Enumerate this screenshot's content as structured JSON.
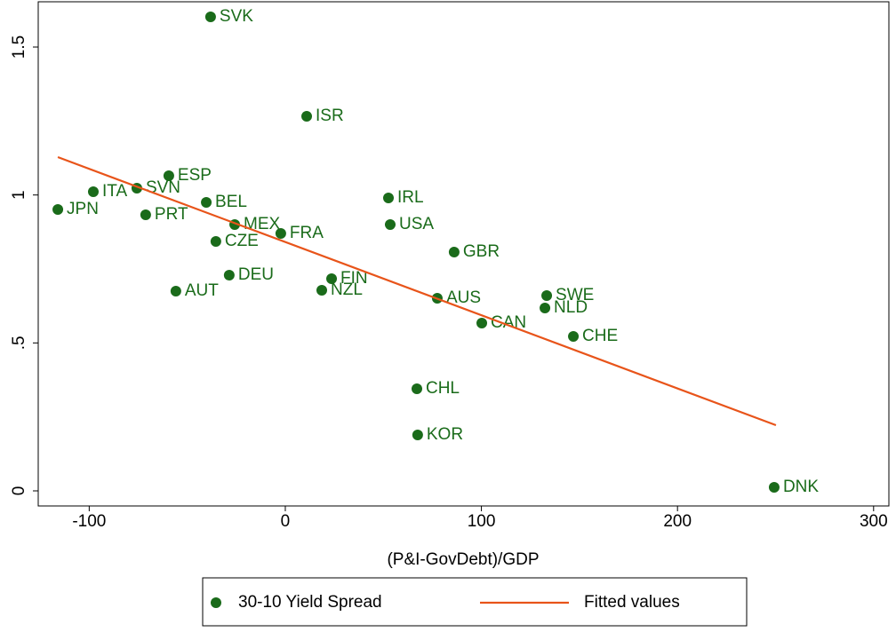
{
  "chart_data": {
    "type": "scatter",
    "xlabel": "(P&I-GovDebt)/GDP",
    "xlim": [
      -126,
      307.8
    ],
    "ylim": [
      -0.051,
      1.653
    ],
    "xticks": [
      -100,
      0,
      100,
      200,
      300
    ],
    "yticks": [
      0,
      {
        "value": 0.5,
        "label": ".5"
      },
      1,
      1.5
    ],
    "legend": "bottom",
    "series": [
      {
        "name": "30-10 Yield Spread",
        "type": "scatter",
        "color": "#1a6b1a",
        "labels": [
          "SVK",
          "ISR",
          "ESP",
          "ITA",
          "SVN",
          "JPN",
          "BEL",
          "PRT",
          "MEX",
          "CZE",
          "FRA",
          "DEU",
          "AUT",
          "FIN",
          "NZL",
          "IRL",
          "USA",
          "GBR",
          "AUS",
          "SWE",
          "NLD",
          "CAN",
          "CHE",
          "CHL",
          "KOR",
          "DNK"
        ],
        "x": [
          -38.1,
          10.9,
          -59.4,
          -97.9,
          -75.7,
          -116,
          -40.3,
          -71.2,
          -25.8,
          -35.4,
          -2.3,
          -28.6,
          -55.8,
          23.6,
          18.6,
          52.6,
          53.5,
          86.1,
          77.5,
          133.3,
          132.4,
          100.2,
          146.9,
          67.1,
          67.5,
          249.3
        ],
        "values": [
          1.602,
          1.266,
          1.065,
          1.011,
          1.023,
          0.951,
          0.975,
          0.933,
          0.9,
          0.843,
          0.87,
          0.729,
          0.675,
          0.717,
          0.678,
          0.99,
          0.9,
          0.807,
          0.651,
          0.66,
          0.618,
          0.567,
          0.522,
          0.345,
          0.189,
          0.012
        ]
      },
      {
        "name": "Fitted values",
        "type": "line",
        "color": "#e8541a",
        "x": [
          -116,
          250.2
        ],
        "values": [
          1.128,
          0.222
        ]
      }
    ]
  }
}
